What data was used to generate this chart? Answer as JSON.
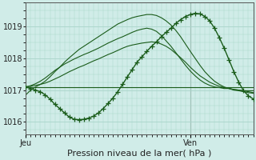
{
  "bg_color": "#d0ece8",
  "grid_color": "#a8d4c8",
  "line_color": "#1a5c1a",
  "xlabel": "Pression niveau de la mer( hPa )",
  "xlabel_fontsize": 8,
  "yticks": [
    1016,
    1017,
    1018,
    1019
  ],
  "ylim": [
    1015.6,
    1019.75
  ],
  "xlim": [
    0,
    47
  ],
  "jeu_x": 0,
  "ven_x": 34,
  "vline_x": 34,
  "series": [
    [
      1017.1,
      1017.1,
      1017.1,
      1017.1,
      1017.1,
      1017.1,
      1017.1,
      1017.1,
      1017.1,
      1017.1,
      1017.1,
      1017.1,
      1017.1,
      1017.1,
      1017.1,
      1017.1,
      1017.1,
      1017.1,
      1017.1,
      1017.1,
      1017.1,
      1017.1,
      1017.1,
      1017.1,
      1017.1,
      1017.1,
      1017.1,
      1017.1,
      1017.1,
      1017.1,
      1017.1,
      1017.1,
      1017.1,
      1017.1,
      1017.1,
      1017.1,
      1017.1,
      1017.1,
      1017.1,
      1017.1,
      1017.1,
      1017.1,
      1017.1,
      1017.1,
      1017.1,
      1017.1,
      1017.1,
      1017.1
    ],
    [
      1017.1,
      1017.12,
      1017.15,
      1017.18,
      1017.22,
      1017.28,
      1017.35,
      1017.42,
      1017.5,
      1017.58,
      1017.65,
      1017.72,
      1017.78,
      1017.85,
      1017.92,
      1017.98,
      1018.05,
      1018.12,
      1018.18,
      1018.25,
      1018.32,
      1018.38,
      1018.42,
      1018.45,
      1018.48,
      1018.5,
      1018.52,
      1018.5,
      1018.45,
      1018.38,
      1018.28,
      1018.15,
      1018.02,
      1017.88,
      1017.72,
      1017.58,
      1017.45,
      1017.35,
      1017.25,
      1017.18,
      1017.12,
      1017.08,
      1017.05,
      1017.02,
      1017.0,
      1016.98,
      1016.98,
      1016.98
    ],
    [
      1017.1,
      1017.14,
      1017.2,
      1017.28,
      1017.38,
      1017.5,
      1017.62,
      1017.72,
      1017.82,
      1017.9,
      1017.98,
      1018.05,
      1018.12,
      1018.18,
      1018.25,
      1018.32,
      1018.4,
      1018.48,
      1018.55,
      1018.62,
      1018.68,
      1018.75,
      1018.82,
      1018.88,
      1018.92,
      1018.95,
      1018.92,
      1018.85,
      1018.72,
      1018.55,
      1018.38,
      1018.18,
      1017.98,
      1017.78,
      1017.6,
      1017.45,
      1017.32,
      1017.22,
      1017.15,
      1017.1,
      1017.08,
      1017.05,
      1017.05,
      1017.02,
      1017.0,
      1016.98,
      1016.95,
      1016.92
    ],
    [
      1016.85,
      1017.0,
      1017.1,
      1017.18,
      1017.28,
      1017.42,
      1017.58,
      1017.72,
      1017.88,
      1018.02,
      1018.15,
      1018.28,
      1018.38,
      1018.48,
      1018.58,
      1018.68,
      1018.78,
      1018.88,
      1018.98,
      1019.08,
      1019.15,
      1019.22,
      1019.28,
      1019.32,
      1019.35,
      1019.38,
      1019.38,
      1019.35,
      1019.28,
      1019.18,
      1019.05,
      1018.88,
      1018.68,
      1018.45,
      1018.22,
      1018.0,
      1017.78,
      1017.58,
      1017.42,
      1017.28,
      1017.18,
      1017.1,
      1017.05,
      1017.0,
      1016.98,
      1016.95,
      1016.92,
      1016.9
    ]
  ],
  "main_x": [
    0,
    1,
    2,
    3,
    4,
    5,
    6,
    7,
    8,
    9,
    10,
    11,
    12,
    13,
    14,
    15,
    16,
    17,
    18,
    19,
    20,
    21,
    22,
    23,
    24,
    25,
    26,
    27,
    28,
    29,
    30,
    31,
    32,
    33,
    34,
    35,
    36,
    37,
    38,
    39,
    40,
    41,
    42,
    43,
    44,
    45,
    46,
    47
  ],
  "main_y": [
    1017.1,
    1017.05,
    1017.0,
    1016.95,
    1016.85,
    1016.72,
    1016.55,
    1016.42,
    1016.28,
    1016.15,
    1016.08,
    1016.07,
    1016.08,
    1016.12,
    1016.18,
    1016.28,
    1016.42,
    1016.58,
    1016.75,
    1016.95,
    1017.18,
    1017.42,
    1017.65,
    1017.88,
    1018.05,
    1018.22,
    1018.38,
    1018.52,
    1018.68,
    1018.82,
    1018.95,
    1019.1,
    1019.22,
    1019.32,
    1019.38,
    1019.42,
    1019.4,
    1019.32,
    1019.18,
    1018.95,
    1018.65,
    1018.32,
    1017.95,
    1017.58,
    1017.25,
    1016.98,
    1016.82,
    1016.72
  ]
}
